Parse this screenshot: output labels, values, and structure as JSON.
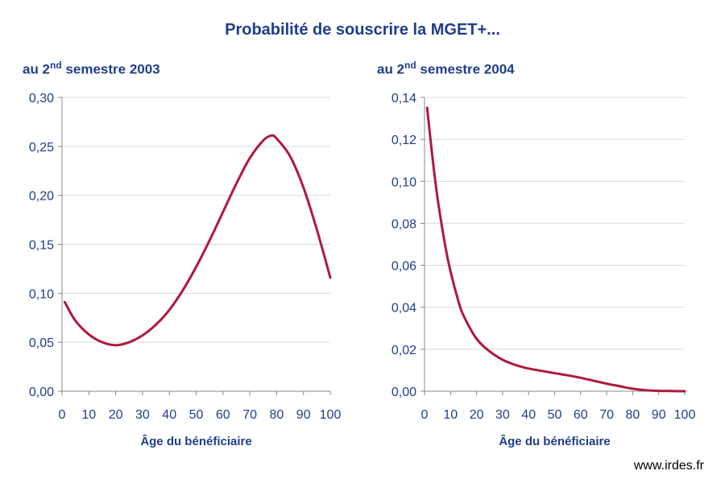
{
  "title": "Probabilité de souscrire la MGET+...",
  "credit": "www.irdes.fr",
  "colors": {
    "line": "#b0183f",
    "text": "#1f3d8c",
    "grid": "#d9d9d9",
    "axis": "#888888"
  },
  "chart_data": [
    {
      "type": "line",
      "title_prefix": "au 2",
      "title_sup": "nd",
      "title_suffix": " semestre 2003",
      "xlabel": "Âge du bénéficiaire",
      "ylabel": "",
      "xlim": [
        0,
        100
      ],
      "ylim": [
        0,
        0.3
      ],
      "xticks": [
        0,
        10,
        20,
        30,
        40,
        50,
        60,
        70,
        80,
        90,
        100
      ],
      "yticks": [
        0,
        0.05,
        0.1,
        0.15,
        0.2,
        0.25,
        0.3
      ],
      "ytick_labels": [
        "0,00",
        "0,05",
        "0,10",
        "0,15",
        "0,20",
        "0,25",
        "0,30"
      ],
      "grid": true,
      "series": [
        {
          "x": [
            1,
            5,
            10,
            15,
            20,
            25,
            30,
            35,
            40,
            45,
            50,
            55,
            60,
            65,
            70,
            75,
            78,
            80,
            85,
            90,
            95,
            100
          ],
          "y": [
            0.091,
            0.072,
            0.058,
            0.05,
            0.047,
            0.05,
            0.057,
            0.068,
            0.083,
            0.103,
            0.127,
            0.154,
            0.183,
            0.212,
            0.238,
            0.256,
            0.261,
            0.258,
            0.24,
            0.208,
            0.165,
            0.116
          ]
        }
      ]
    },
    {
      "type": "line",
      "title_prefix": "au 2",
      "title_sup": "nd",
      "title_suffix": " semestre 2004",
      "xlabel": "Âge du bénéficiaire",
      "ylabel": "",
      "xlim": [
        0,
        100
      ],
      "ylim": [
        0,
        0.14
      ],
      "xticks": [
        0,
        10,
        20,
        30,
        40,
        50,
        60,
        70,
        80,
        90,
        100
      ],
      "yticks": [
        0,
        0.02,
        0.04,
        0.06,
        0.08,
        0.1,
        0.12,
        0.14
      ],
      "ytick_labels": [
        "0,00",
        "0,02",
        "0,04",
        "0,06",
        "0,08",
        "0,10",
        "0,12",
        "0,14"
      ],
      "grid": true,
      "series": [
        {
          "x": [
            1,
            3,
            5,
            8,
            10,
            13,
            15,
            20,
            25,
            30,
            35,
            40,
            45,
            50,
            55,
            60,
            65,
            70,
            75,
            80,
            85,
            90,
            95,
            100
          ],
          "y": [
            0.135,
            0.112,
            0.092,
            0.069,
            0.057,
            0.043,
            0.036,
            0.025,
            0.019,
            0.015,
            0.0125,
            0.0108,
            0.0097,
            0.0086,
            0.0076,
            0.0064,
            0.005,
            0.0036,
            0.0024,
            0.0012,
            0.0005,
            0.0002,
            0.0001,
            0.0
          ]
        }
      ]
    }
  ]
}
